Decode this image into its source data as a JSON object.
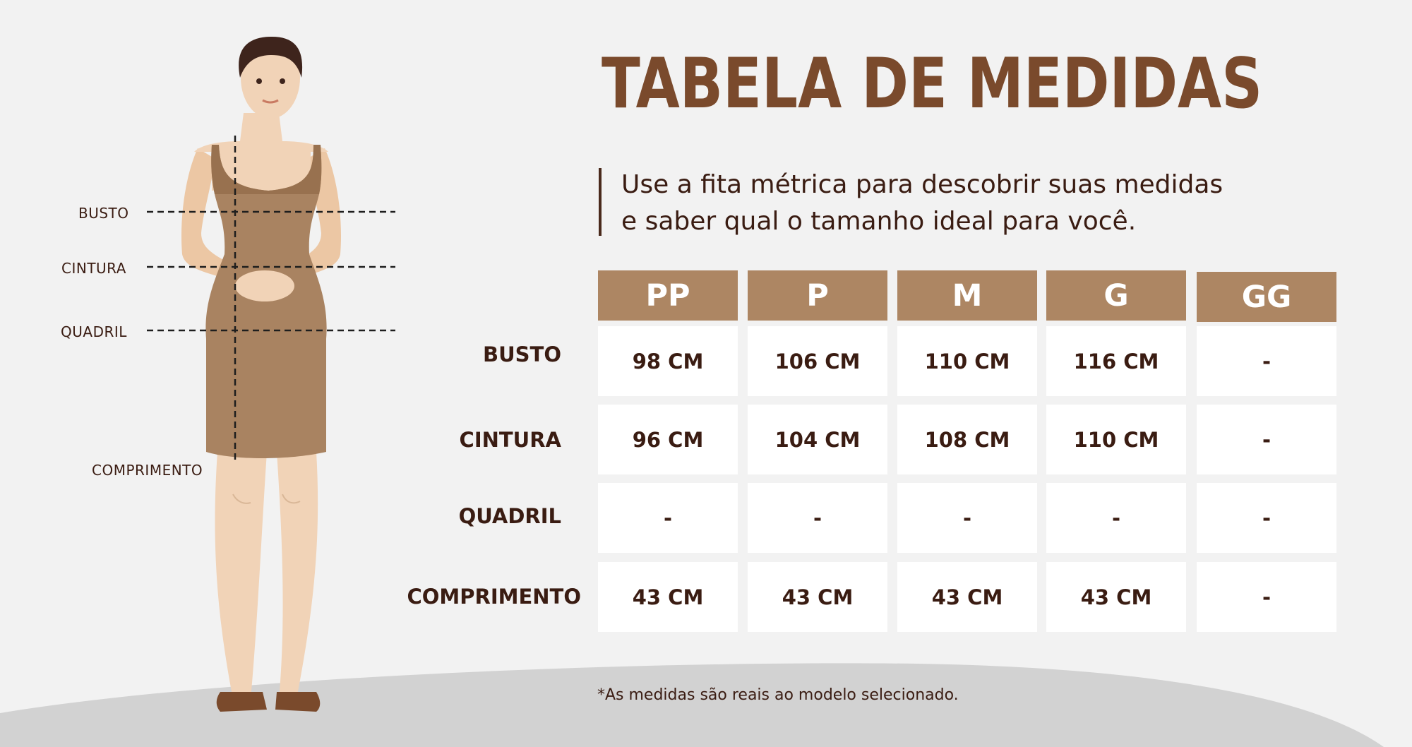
{
  "title": "TABELA DE MEDIDAS",
  "subtitle": {
    "line1": "Use a fita métrica para descobrir suas medidas",
    "line2": "e saber qual o tamanho ideal para você."
  },
  "figure_labels": {
    "busto": "BUSTO",
    "cintura": "CINTURA",
    "quadril": "QUADRIL",
    "comprimento": "COMPRIMENTO"
  },
  "table": {
    "sizes": [
      "PP",
      "P",
      "M",
      "G",
      "GG"
    ],
    "rows": [
      {
        "label": "BUSTO",
        "values": [
          "98 CM",
          "106 CM",
          "110 CM",
          "116 CM",
          "-"
        ]
      },
      {
        "label": "CINTURA",
        "values": [
          "96 CM",
          "104 CM",
          "108 CM",
          "110 CM",
          "-"
        ]
      },
      {
        "label": "QUADRIL",
        "values": [
          "-",
          "-",
          "-",
          "-",
          "-"
        ]
      },
      {
        "label": "COMPRIMENTO",
        "values": [
          "43 CM",
          "43 CM",
          "43 CM",
          "43 CM",
          "-"
        ]
      }
    ]
  },
  "footnote": "*As medidas são reais ao modelo selecionado.",
  "colors": {
    "background": "#f2f2f2",
    "floor": "#d2d2d2",
    "title": "#7a4a2c",
    "header_fill": "#ad8663",
    "dress": "#a98361",
    "skin": "#f1d3b7",
    "hair": "#3e241c",
    "text": "#3a1c12"
  }
}
